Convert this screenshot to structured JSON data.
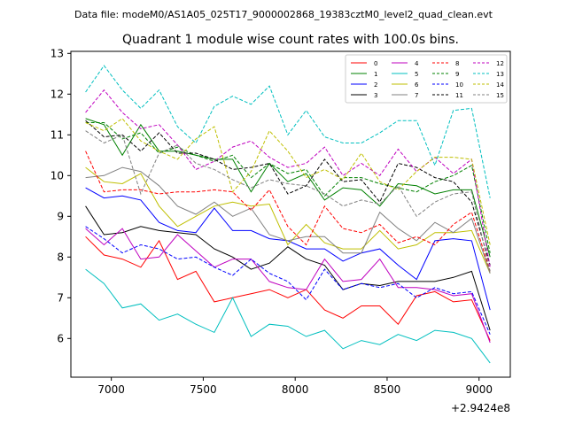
{
  "chart_data": {
    "type": "line",
    "suptitle": "Data file: modeM0/AS1A05_025T17_9000002868_19383cztM0_level2_quad_clean.evt",
    "title": "Quadrant 1 module wise count rates with 100.0s bins.",
    "xlabel": "",
    "ylabel": "",
    "x_offset_label": "+2.9424e8",
    "xlim": [
      6780,
      9170
    ],
    "ylim": [
      5.05,
      13.05
    ],
    "xticks": [
      7000,
      7500,
      8000,
      8500,
      9000
    ],
    "yticks": [
      6,
      7,
      8,
      9,
      10,
      11,
      12,
      13
    ],
    "legend_position": "upper-right",
    "x": [
      6860,
      6960,
      7060,
      7160,
      7260,
      7360,
      7460,
      7560,
      7660,
      7760,
      7860,
      7960,
      8060,
      8160,
      8260,
      8360,
      8460,
      8560,
      8660,
      8760,
      8860,
      8960,
      9060
    ],
    "series": [
      {
        "name": "0",
        "color": "#ff0000",
        "dash": "solid",
        "values": [
          8.5,
          8.05,
          7.95,
          7.75,
          8.4,
          7.45,
          7.65,
          6.9,
          7.0,
          7.1,
          7.2,
          7.0,
          7.2,
          6.7,
          6.5,
          6.8,
          6.8,
          6.35,
          7.05,
          7.15,
          6.9,
          6.95,
          5.95
        ]
      },
      {
        "name": "1",
        "color": "#008000",
        "dash": "solid",
        "values": [
          11.4,
          11.25,
          10.5,
          11.25,
          10.6,
          10.6,
          10.5,
          10.4,
          10.4,
          9.6,
          10.3,
          9.85,
          10.05,
          9.4,
          9.7,
          9.65,
          9.25,
          9.8,
          9.75,
          9.55,
          9.65,
          9.65,
          8.0
        ]
      },
      {
        "name": "2",
        "color": "#0000ff",
        "dash": "solid",
        "values": [
          9.7,
          9.45,
          9.5,
          9.4,
          8.85,
          8.65,
          8.6,
          9.2,
          8.65,
          8.65,
          8.45,
          8.4,
          8.2,
          8.2,
          7.9,
          8.1,
          8.2,
          7.8,
          7.45,
          8.4,
          8.45,
          8.4,
          6.7
        ]
      },
      {
        "name": "3",
        "color": "#000000",
        "dash": "solid",
        "values": [
          9.25,
          8.55,
          8.6,
          8.75,
          8.65,
          8.6,
          8.55,
          8.2,
          8.0,
          7.7,
          7.85,
          8.25,
          7.95,
          7.8,
          7.2,
          7.35,
          7.3,
          7.4,
          7.4,
          7.4,
          7.5,
          7.65,
          6.2
        ]
      },
      {
        "name": "4",
        "color": "#bf00bf",
        "dash": "solid",
        "values": [
          8.7,
          8.3,
          8.7,
          7.95,
          8.0,
          8.55,
          8.15,
          7.75,
          7.95,
          7.95,
          7.4,
          7.25,
          7.2,
          7.95,
          7.4,
          7.45,
          7.95,
          7.25,
          7.25,
          7.2,
          7.05,
          7.1,
          5.9
        ]
      },
      {
        "name": "5",
        "color": "#00bfbf",
        "dash": "solid",
        "values": [
          7.7,
          7.35,
          6.75,
          6.85,
          6.45,
          6.6,
          6.35,
          6.15,
          7.0,
          6.05,
          6.35,
          6.3,
          6.05,
          6.2,
          5.75,
          5.95,
          5.85,
          6.1,
          5.95,
          6.2,
          6.15,
          6.0,
          5.4
        ]
      },
      {
        "name": "6",
        "color": "#bfbf00",
        "dash": "solid",
        "values": [
          10.2,
          9.85,
          9.8,
          10.05,
          9.25,
          8.75,
          9.0,
          9.25,
          9.35,
          9.25,
          9.3,
          8.3,
          8.8,
          8.35,
          8.2,
          8.2,
          8.65,
          8.2,
          8.3,
          8.6,
          8.6,
          8.65,
          7.6
        ]
      },
      {
        "name": "7",
        "color": "#808080",
        "dash": "solid",
        "values": [
          9.95,
          10.0,
          10.2,
          10.1,
          9.75,
          9.25,
          9.05,
          9.35,
          9.0,
          9.2,
          8.55,
          8.4,
          8.5,
          8.5,
          8.1,
          8.1,
          9.1,
          8.7,
          8.4,
          8.85,
          8.6,
          8.95,
          7.6
        ]
      },
      {
        "name": "8",
        "color": "#ff0000",
        "dash": "dashed",
        "values": [
          10.6,
          9.6,
          9.65,
          9.65,
          9.55,
          9.6,
          9.6,
          9.65,
          9.6,
          9.15,
          9.65,
          8.75,
          8.3,
          9.25,
          8.7,
          8.6,
          8.8,
          8.35,
          8.5,
          8.3,
          8.8,
          9.1,
          7.65
        ]
      },
      {
        "name": "9",
        "color": "#008000",
        "dash": "dashed",
        "values": [
          11.3,
          11.3,
          10.9,
          11.05,
          10.55,
          10.7,
          10.5,
          10.35,
          10.5,
          9.95,
          10.3,
          10.05,
          10.15,
          9.5,
          9.95,
          9.95,
          9.8,
          9.7,
          9.6,
          9.85,
          10.0,
          10.25,
          8.1
        ]
      },
      {
        "name": "10",
        "color": "#0000ff",
        "dash": "dashed",
        "values": [
          8.75,
          8.45,
          8.1,
          8.3,
          8.2,
          7.95,
          8.0,
          7.75,
          7.55,
          7.95,
          7.6,
          7.4,
          6.95,
          7.7,
          7.2,
          7.35,
          7.25,
          7.35,
          7.0,
          7.25,
          7.1,
          7.15,
          6.1
        ]
      },
      {
        "name": "11",
        "color": "#000000",
        "dash": "dashed",
        "values": [
          11.35,
          10.95,
          11.0,
          10.6,
          11.05,
          10.55,
          10.55,
          10.4,
          10.15,
          10.2,
          10.3,
          9.55,
          9.75,
          10.4,
          9.85,
          9.9,
          9.35,
          10.3,
          10.2,
          9.95,
          9.85,
          9.35,
          7.8
        ]
      },
      {
        "name": "12",
        "color": "#bf00bf",
        "dash": "dashed",
        "values": [
          11.55,
          12.1,
          11.55,
          11.15,
          11.25,
          10.75,
          10.15,
          10.35,
          10.7,
          10.85,
          10.45,
          10.2,
          10.3,
          10.7,
          10.0,
          10.3,
          10.0,
          10.65,
          10.1,
          10.45,
          10.05,
          10.4,
          7.75
        ]
      },
      {
        "name": "13",
        "color": "#00bfbf",
        "dash": "dashed",
        "values": [
          12.05,
          12.7,
          12.1,
          11.65,
          12.1,
          11.2,
          10.8,
          11.7,
          11.95,
          11.75,
          12.2,
          11.0,
          11.6,
          10.95,
          10.8,
          10.8,
          11.05,
          11.35,
          11.35,
          10.25,
          11.6,
          11.65,
          9.45
        ]
      },
      {
        "name": "14",
        "color": "#bfbf00",
        "dash": "dashed",
        "values": [
          11.3,
          11.1,
          11.4,
          10.85,
          10.6,
          10.4,
          10.9,
          11.2,
          9.6,
          10.1,
          11.1,
          10.6,
          9.95,
          10.15,
          9.9,
          10.55,
          9.85,
          9.65,
          10.1,
          10.45,
          10.45,
          10.4,
          8.3
        ]
      },
      {
        "name": "15",
        "color": "#808080",
        "dash": "dashed",
        "values": [
          11.1,
          10.8,
          11.0,
          9.55,
          10.55,
          10.75,
          10.3,
          10.15,
          9.9,
          9.7,
          9.9,
          9.8,
          9.75,
          9.55,
          9.25,
          9.4,
          9.3,
          9.75,
          9.0,
          9.35,
          9.55,
          9.6,
          7.65
        ]
      }
    ]
  }
}
